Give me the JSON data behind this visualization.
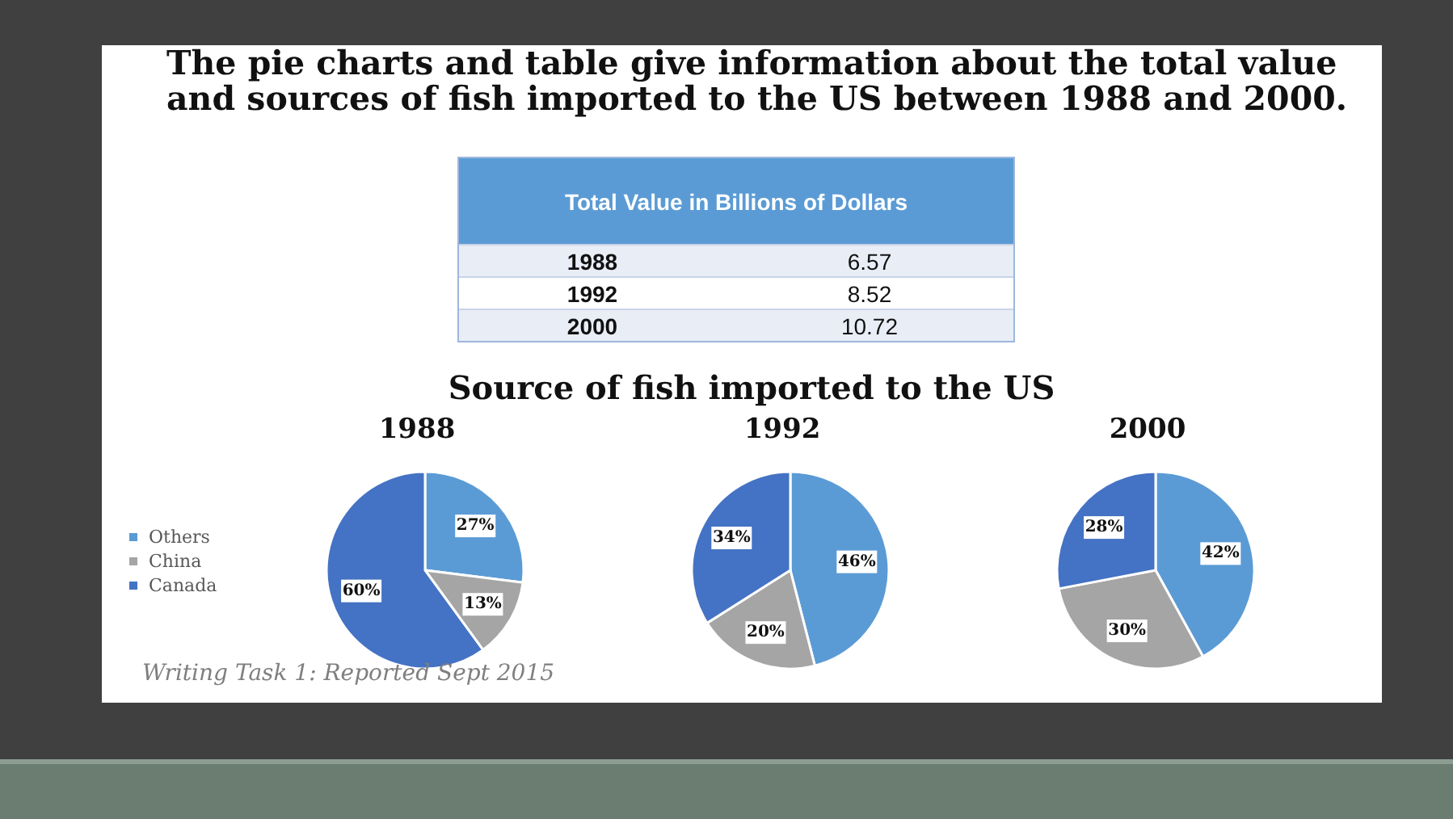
{
  "chart_data": [
    {
      "type": "other",
      "title": "The pie charts and table give information about the total value and sources of fish imported to the US between 1988 and 2000.",
      "subtitle": "Total Value in Billions of Dollars",
      "categories": [
        "1988",
        "1992",
        "2000"
      ],
      "values": [
        6.57,
        8.52,
        10.72
      ],
      "data_labels": true
    },
    {
      "type": "pie",
      "title": "Source of fish imported to the US",
      "categories": [
        "Others",
        "China",
        "Canada"
      ],
      "colors": [
        "#5b9bd5",
        "#a5a5a5",
        "#4472c4"
      ],
      "legend": "left",
      "annotations": [
        "Writing Task 1: Reported Sept 2015"
      ],
      "series": [
        {
          "name": "1988",
          "values": [
            27,
            13,
            60
          ],
          "value_labels": [
            "27%",
            "13%",
            "60%"
          ]
        },
        {
          "name": "1992",
          "values": [
            46,
            20,
            34
          ],
          "value_labels": [
            "46%",
            "20%",
            "34%"
          ]
        },
        {
          "name": "2000",
          "values": [
            42,
            30,
            28
          ],
          "value_labels": [
            "42%",
            "30%",
            "28%"
          ]
        }
      ]
    }
  ]
}
